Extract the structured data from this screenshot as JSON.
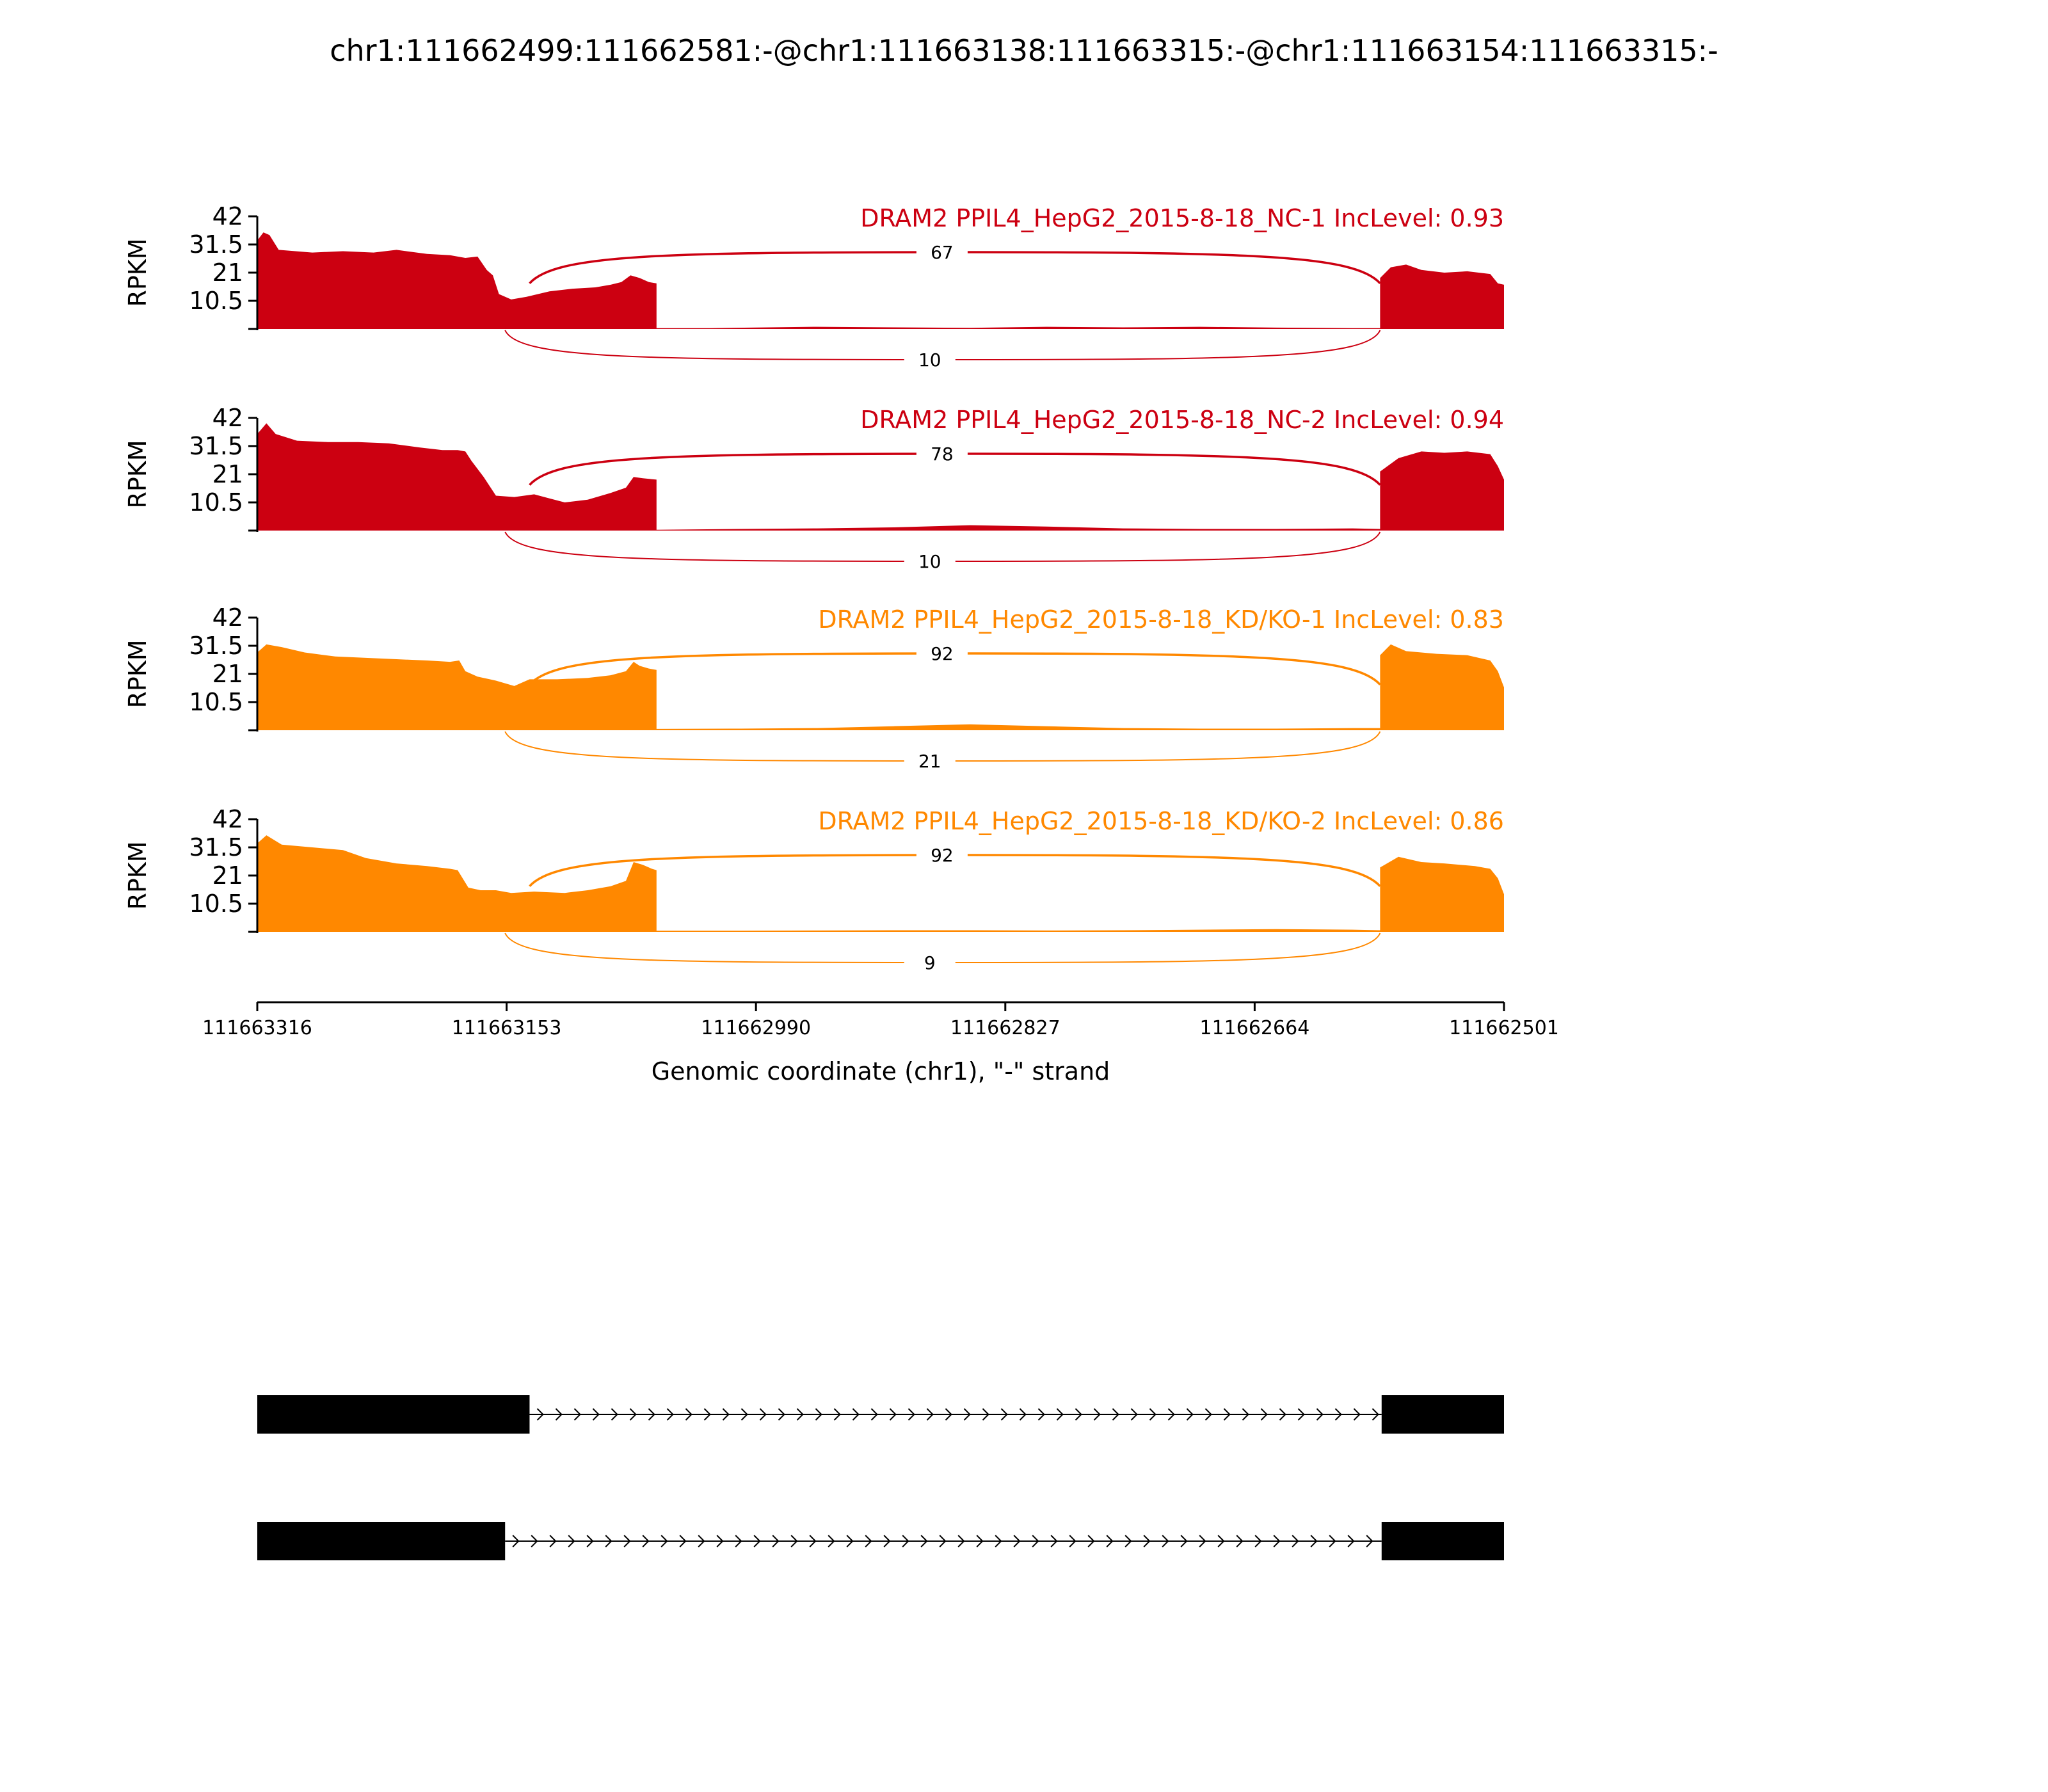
{
  "chart_data": {
    "type": "area",
    "title": "chr1:111662499:111662581:-@chr1:111663138:111663315:-@chr1:111663154:111663315:-",
    "xlabel": "Genomic coordinate (chr1), \"-\" strand",
    "ylabel": "RPKM",
    "x_ticks": [
      "111663316",
      "111663153",
      "111662990",
      "111662827",
      "111662664",
      "111662501"
    ],
    "xlim": [
      111663316,
      111662501
    ],
    "ylim": [
      0,
      42
    ],
    "y_ticks": [
      "42",
      "31.5",
      "21",
      "10.5"
    ],
    "grid": false,
    "colors": {
      "NC": "#cc0011",
      "KDKO": "#ff8800"
    },
    "panels": [
      {
        "title": "DRAM2 PPIL4_HepG2_2015-8-18_NC-1 IncLevel: 0.93",
        "group": "NC",
        "coverage": [
          [
            111663316,
            0
          ],
          [
            111663316,
            33
          ],
          [
            111663312,
            36
          ],
          [
            111663308,
            35
          ],
          [
            111663302,
            29.5
          ],
          [
            111663280,
            28.5
          ],
          [
            111663260,
            29
          ],
          [
            111663240,
            28.5
          ],
          [
            111663225,
            29.5
          ],
          [
            111663205,
            28
          ],
          [
            111663190,
            27.5
          ],
          [
            111663180,
            26.5
          ],
          [
            111663172,
            27
          ],
          [
            111663166,
            22
          ],
          [
            111663162,
            20
          ],
          [
            111663158,
            13
          ],
          [
            111663150,
            11
          ],
          [
            111663140,
            12
          ],
          [
            111663125,
            14
          ],
          [
            111663110,
            15
          ],
          [
            111663095,
            15.5
          ],
          [
            111663085,
            16.5
          ],
          [
            111663078,
            17.5
          ],
          [
            111663072,
            20
          ],
          [
            111663066,
            19
          ],
          [
            111663060,
            17.5
          ],
          [
            111663055,
            17
          ],
          [
            111663055,
            0.3
          ],
          [
            111663020,
            0.3
          ],
          [
            111662950,
            0.8
          ],
          [
            111662900,
            0.6
          ],
          [
            111662850,
            0.4
          ],
          [
            111662800,
            0.8
          ],
          [
            111662750,
            0.6
          ],
          [
            111662700,
            0.8
          ],
          [
            111662650,
            0.5
          ],
          [
            111662600,
            0.3
          ],
          [
            111662582,
            0.3
          ],
          [
            111662582,
            19
          ],
          [
            111662575,
            23
          ],
          [
            111662565,
            24
          ],
          [
            111662555,
            22
          ],
          [
            111662540,
            21
          ],
          [
            111662525,
            21.5
          ],
          [
            111662510,
            20.5
          ],
          [
            111662505,
            17
          ],
          [
            111662501,
            16.5
          ],
          [
            111662501,
            0
          ]
        ],
        "junctions": [
          {
            "from": 111663138,
            "to": 111662582,
            "count": 67,
            "position": "above"
          },
          {
            "from": 111663154,
            "to": 111662582,
            "count": 10,
            "position": "below"
          }
        ]
      },
      {
        "title": "DRAM2 PPIL4_HepG2_2015-8-18_NC-2 IncLevel: 0.94",
        "group": "NC",
        "coverage": [
          [
            111663316,
            0
          ],
          [
            111663316,
            36
          ],
          [
            111663310,
            40
          ],
          [
            111663304,
            36
          ],
          [
            111663290,
            33.5
          ],
          [
            111663270,
            33
          ],
          [
            111663250,
            33
          ],
          [
            111663230,
            32.5
          ],
          [
            111663210,
            31
          ],
          [
            111663195,
            30
          ],
          [
            111663185,
            30
          ],
          [
            111663180,
            29.5
          ],
          [
            111663176,
            26
          ],
          [
            111663168,
            20
          ],
          [
            111663160,
            13
          ],
          [
            111663148,
            12.5
          ],
          [
            111663135,
            13.5
          ],
          [
            111663125,
            12
          ],
          [
            111663115,
            10.5
          ],
          [
            111663100,
            11.5
          ],
          [
            111663085,
            14
          ],
          [
            111663075,
            16
          ],
          [
            111663070,
            20
          ],
          [
            111663064,
            19.5
          ],
          [
            111663055,
            19
          ],
          [
            111663055,
            0.3
          ],
          [
            111663000,
            0.6
          ],
          [
            111662950,
            0.8
          ],
          [
            111662900,
            1.2
          ],
          [
            111662850,
            2
          ],
          [
            111662800,
            1.5
          ],
          [
            111662750,
            0.8
          ],
          [
            111662700,
            0.6
          ],
          [
            111662650,
            0.6
          ],
          [
            111662600,
            0.8
          ],
          [
            111662582,
            0.6
          ],
          [
            111662582,
            22
          ],
          [
            111662570,
            27
          ],
          [
            111662555,
            29.5
          ],
          [
            111662540,
            29
          ],
          [
            111662525,
            29.5
          ],
          [
            111662510,
            28.5
          ],
          [
            111662505,
            24
          ],
          [
            111662501,
            19
          ],
          [
            111662501,
            0
          ]
        ],
        "junctions": [
          {
            "from": 111663138,
            "to": 111662582,
            "count": 78,
            "position": "above"
          },
          {
            "from": 111663154,
            "to": 111662582,
            "count": 10,
            "position": "below"
          }
        ]
      },
      {
        "title": "DRAM2 PPIL4_HepG2_2015-8-18_KD/KO-1 IncLevel: 0.83",
        "group": "KDKO",
        "coverage": [
          [
            111663316,
            0
          ],
          [
            111663316,
            29
          ],
          [
            111663310,
            32
          ],
          [
            111663300,
            31
          ],
          [
            111663285,
            29
          ],
          [
            111663265,
            27.5
          ],
          [
            111663245,
            27
          ],
          [
            111663225,
            26.5
          ],
          [
            111663205,
            26
          ],
          [
            111663190,
            25.5
          ],
          [
            111663184,
            26
          ],
          [
            111663180,
            22
          ],
          [
            111663172,
            20
          ],
          [
            111663160,
            18.5
          ],
          [
            111663148,
            16.5
          ],
          [
            111663138,
            19
          ],
          [
            111663120,
            19
          ],
          [
            111663100,
            19.5
          ],
          [
            111663085,
            20.5
          ],
          [
            111663075,
            22
          ],
          [
            111663070,
            25.5
          ],
          [
            111663066,
            24
          ],
          [
            111663060,
            23
          ],
          [
            111663055,
            22.5
          ],
          [
            111663055,
            0.5
          ],
          [
            111663000,
            0.6
          ],
          [
            111662950,
            0.8
          ],
          [
            111662900,
            1.5
          ],
          [
            111662850,
            2.2
          ],
          [
            111662800,
            1.5
          ],
          [
            111662750,
            0.8
          ],
          [
            111662700,
            0.6
          ],
          [
            111662650,
            0.6
          ],
          [
            111662600,
            0.8
          ],
          [
            111662582,
            0.8
          ],
          [
            111662582,
            28
          ],
          [
            111662575,
            32
          ],
          [
            111662565,
            29.5
          ],
          [
            111662545,
            28.5
          ],
          [
            111662525,
            28
          ],
          [
            111662510,
            26
          ],
          [
            111662505,
            22
          ],
          [
            111662501,
            16
          ],
          [
            111662501,
            0
          ]
        ],
        "junctions": [
          {
            "from": 111663138,
            "to": 111662582,
            "count": 92,
            "position": "above"
          },
          {
            "from": 111663154,
            "to": 111662582,
            "count": 21,
            "position": "below"
          }
        ]
      },
      {
        "title": "DRAM2 PPIL4_HepG2_2015-8-18_KD/KO-2 IncLevel: 0.86",
        "group": "KDKO",
        "coverage": [
          [
            111663316,
            0
          ],
          [
            111663316,
            33
          ],
          [
            111663310,
            36
          ],
          [
            111663300,
            32.5
          ],
          [
            111663280,
            31.5
          ],
          [
            111663260,
            30.5
          ],
          [
            111663245,
            27.5
          ],
          [
            111663225,
            25.5
          ],
          [
            111663205,
            24.5
          ],
          [
            111663190,
            23.5
          ],
          [
            111663185,
            23
          ],
          [
            111663178,
            16.5
          ],
          [
            111663170,
            15.5
          ],
          [
            111663160,
            15.5
          ],
          [
            111663150,
            14.5
          ],
          [
            111663135,
            15
          ],
          [
            111663115,
            14.5
          ],
          [
            111663100,
            15.5
          ],
          [
            111663085,
            17
          ],
          [
            111663075,
            19
          ],
          [
            111663070,
            26
          ],
          [
            111663064,
            25
          ],
          [
            111663058,
            23.5
          ],
          [
            111663055,
            23
          ],
          [
            111663055,
            0.4
          ],
          [
            111663000,
            0.4
          ],
          [
            111662950,
            0.5
          ],
          [
            111662900,
            0.6
          ],
          [
            111662850,
            0.6
          ],
          [
            111662800,
            0.5
          ],
          [
            111662750,
            0.6
          ],
          [
            111662700,
            0.8
          ],
          [
            111662650,
            1
          ],
          [
            111662600,
            0.8
          ],
          [
            111662582,
            0.6
          ],
          [
            111662582,
            24
          ],
          [
            111662570,
            28
          ],
          [
            111662555,
            26
          ],
          [
            111662540,
            25.5
          ],
          [
            111662520,
            24.5
          ],
          [
            111662510,
            23.5
          ],
          [
            111662505,
            20
          ],
          [
            111662501,
            14
          ],
          [
            111662501,
            0
          ]
        ],
        "junctions": [
          {
            "from": 111663138,
            "to": 111662582,
            "count": 92,
            "position": "above"
          },
          {
            "from": 111663154,
            "to": 111662582,
            "count": 9,
            "position": "below"
          }
        ]
      }
    ],
    "isoforms": [
      {
        "exons": [
          [
            111663316,
            111663138
          ],
          [
            111662581,
            111662501
          ]
        ]
      },
      {
        "exons": [
          [
            111663316,
            111663154
          ],
          [
            111662581,
            111662501
          ]
        ]
      }
    ]
  }
}
